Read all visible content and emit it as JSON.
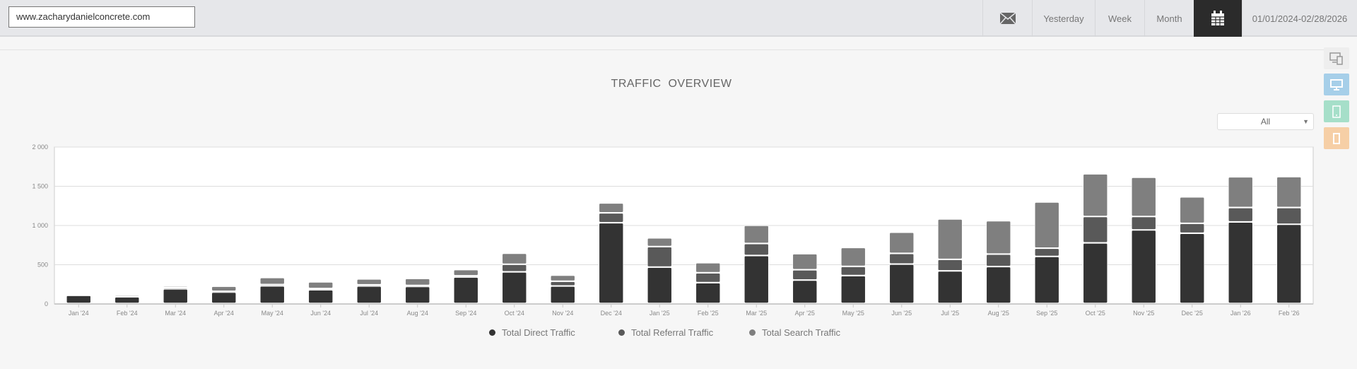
{
  "header": {
    "url": "www.zacharydanielconcrete.com",
    "yesterday": "Yesterday",
    "week": "Week",
    "month": "Month",
    "date_range": "01/01/2024-02/28/2026",
    "icons": [
      "envelope-icon",
      "calendar-icon"
    ]
  },
  "title": "TRAFFIC  OVERVIEW",
  "filter": {
    "selected": "All"
  },
  "device_icons": [
    "all-devices-icon",
    "desktop-icon",
    "tablet-icon",
    "mobile-icon"
  ],
  "colors": {
    "direct": "#333333",
    "referral": "#595959",
    "search": "#7f7f7f",
    "desktop": "#a6cfe9",
    "tablet": "#a6dfc9",
    "mobile": "#f6cfa6"
  },
  "chart_data": {
    "type": "bar",
    "stacked": true,
    "title": "",
    "xlabel": "",
    "ylabel": "",
    "ylim": [
      0,
      2000
    ],
    "yticks": [
      "0",
      "500",
      "1 000",
      "1 500",
      "2 000"
    ],
    "grid": true,
    "legend": "bottom",
    "categories": [
      "Jan '24",
      "Feb '24",
      "Mar '24",
      "Apr '24",
      "May '24",
      "Jun '24",
      "Jul '24",
      "Aug '24",
      "Sep '24",
      "Oct '24",
      "Nov '24",
      "Dec '24",
      "Jan '25",
      "Feb '25",
      "Mar '25",
      "Apr '25",
      "May '25",
      "Jun '25",
      "Jul '25",
      "Aug '25",
      "Sep '25",
      "Oct '25",
      "Nov '25",
      "Dec '25",
      "Jan '26",
      "Feb '26"
    ],
    "series": [
      {
        "name": "Total Direct Traffic",
        "values": [
          105,
          85,
          186,
          145,
          225,
          175,
          222,
          217,
          337,
          403,
          222,
          1029,
          463,
          265,
          611,
          298,
          355,
          502,
          415,
          470,
          599,
          772,
          937,
          895,
          1039,
          1009
        ]
      },
      {
        "name": "Total Referral Traffic",
        "values": [
          0,
          8,
          15,
          10,
          15,
          15,
          15,
          12,
          15,
          96,
          61,
          126,
          262,
          126,
          153,
          132,
          117,
          136,
          147,
          159,
          105,
          336,
          171,
          126,
          183,
          213
        ]
      },
      {
        "name": "Total Search Traffic",
        "values": [
          5,
          15,
          20,
          65,
          90,
          85,
          75,
          90,
          80,
          141,
          78,
          126,
          111,
          129,
          232,
          205,
          241,
          270,
          515,
          425,
          589,
          545,
          500,
          338,
          392,
          395
        ]
      }
    ]
  }
}
